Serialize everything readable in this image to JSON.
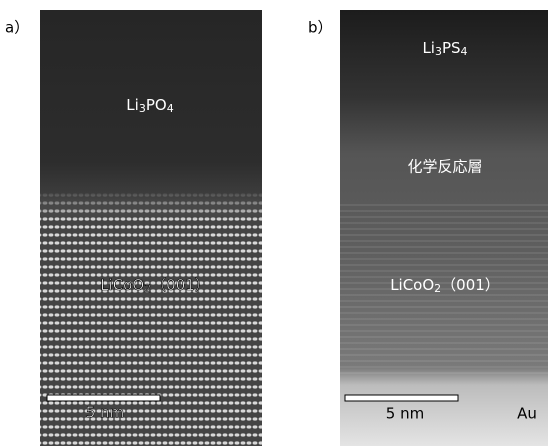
{
  "panels": [
    {
      "label": "a）",
      "top_layer": {
        "parts": [
          "Li",
          "3",
          "PO",
          "4"
        ]
      },
      "bottom_layer": {
        "parts": [
          "LiCoO",
          "2",
          "（001）"
        ]
      },
      "scale_bar": "5 nm"
    },
    {
      "label": "b）",
      "top_layer": {
        "parts": [
          "Li",
          "3",
          "PS",
          "4"
        ]
      },
      "reaction_layer": "化学反応層",
      "bottom_layer": {
        "parts": [
          "LiCoO",
          "2",
          "（001）"
        ]
      },
      "scale_bar": "5 nm",
      "substrate": "Au"
    }
  ]
}
